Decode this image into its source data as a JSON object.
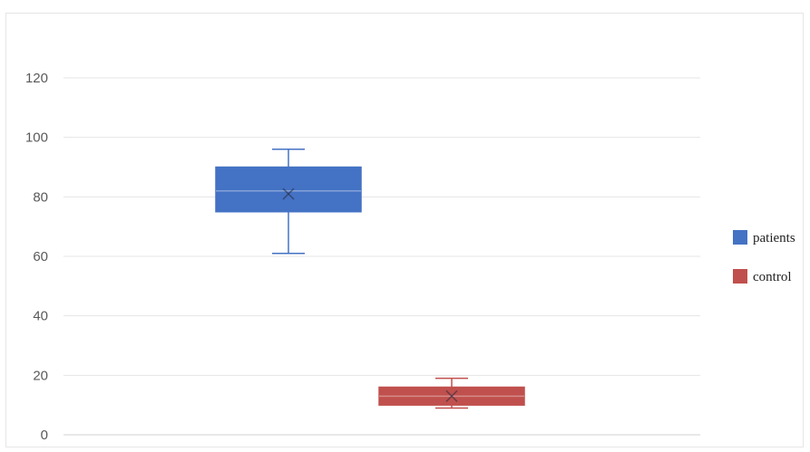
{
  "chart_data": {
    "type": "box",
    "title": "",
    "xlabel": "",
    "ylabel": "",
    "ylim": [
      0,
      120
    ],
    "yticks": [
      0,
      20,
      40,
      60,
      80,
      100,
      120
    ],
    "grid": true,
    "legend_position": "right",
    "series": [
      {
        "name": "patients",
        "color": "#4472C4",
        "min": 61,
        "q1": 75,
        "median": 82,
        "q3": 90,
        "max": 96,
        "mean": 81
      },
      {
        "name": "control",
        "color": "#C0504D",
        "min": 9,
        "q1": 10,
        "median": 13,
        "q3": 16,
        "max": 19,
        "mean": 13
      }
    ]
  }
}
